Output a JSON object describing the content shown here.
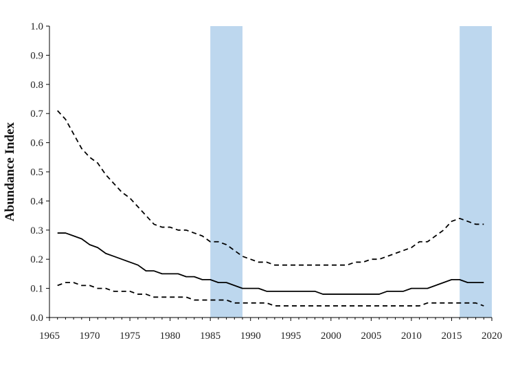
{
  "chart_data": {
    "type": "line",
    "title": "",
    "xlabel": "",
    "ylabel": "Abundance Index",
    "xlim": [
      1965,
      2020
    ],
    "ylim": [
      0.0,
      1.0
    ],
    "x_ticks": [
      "1965",
      "1970",
      "1975",
      "1980",
      "1985",
      "1990",
      "1995",
      "2000",
      "2005",
      "2010",
      "2015",
      "2020"
    ],
    "y_ticks": [
      "0.0",
      "0.1",
      "0.2",
      "0.3",
      "0.4",
      "0.5",
      "0.6",
      "0.7",
      "0.8",
      "0.9",
      "1.0"
    ],
    "grid": false,
    "legend": "none",
    "shaded_periods": [
      {
        "start": 1985,
        "end": 1989,
        "color": "#bdd7ee"
      },
      {
        "start": 2016,
        "end": 2020,
        "color": "#bdd7ee"
      }
    ],
    "series": [
      {
        "style": "dashed",
        "color": "#000000",
        "x": [
          1966,
          1967,
          1968,
          1969,
          1970,
          1971,
          1972,
          1973,
          1974,
          1975,
          1976,
          1977,
          1978,
          1979,
          1980,
          1981,
          1982,
          1983,
          1984,
          1985,
          1986,
          1987,
          1988,
          1989,
          1990,
          1991,
          1992,
          1993,
          1994,
          1995,
          1996,
          1997,
          1998,
          1999,
          2000,
          2001,
          2002,
          2003,
          2004,
          2005,
          2006,
          2007,
          2008,
          2009,
          2010,
          2011,
          2012,
          2013,
          2014,
          2015,
          2016,
          2017,
          2018,
          2019
        ],
        "values": [
          0.71,
          0.68,
          0.63,
          0.58,
          0.55,
          0.53,
          0.49,
          0.46,
          0.43,
          0.41,
          0.38,
          0.35,
          0.32,
          0.31,
          0.31,
          0.3,
          0.3,
          0.29,
          0.28,
          0.26,
          0.26,
          0.25,
          0.23,
          0.21,
          0.2,
          0.19,
          0.19,
          0.18,
          0.18,
          0.18,
          0.18,
          0.18,
          0.18,
          0.18,
          0.18,
          0.18,
          0.18,
          0.19,
          0.19,
          0.2,
          0.2,
          0.21,
          0.22,
          0.23,
          0.24,
          0.26,
          0.26,
          0.28,
          0.3,
          0.33,
          0.34,
          0.33,
          0.32,
          0.32
        ]
      },
      {
        "style": "solid",
        "color": "#000000",
        "x": [
          1966,
          1967,
          1968,
          1969,
          1970,
          1971,
          1972,
          1973,
          1974,
          1975,
          1976,
          1977,
          1978,
          1979,
          1980,
          1981,
          1982,
          1983,
          1984,
          1985,
          1986,
          1987,
          1988,
          1989,
          1990,
          1991,
          1992,
          1993,
          1994,
          1995,
          1996,
          1997,
          1998,
          1999,
          2000,
          2001,
          2002,
          2003,
          2004,
          2005,
          2006,
          2007,
          2008,
          2009,
          2010,
          2011,
          2012,
          2013,
          2014,
          2015,
          2016,
          2017,
          2018,
          2019
        ],
        "values": [
          0.29,
          0.29,
          0.28,
          0.27,
          0.25,
          0.24,
          0.22,
          0.21,
          0.2,
          0.19,
          0.18,
          0.16,
          0.16,
          0.15,
          0.15,
          0.15,
          0.14,
          0.14,
          0.13,
          0.13,
          0.12,
          0.12,
          0.11,
          0.1,
          0.1,
          0.1,
          0.09,
          0.09,
          0.09,
          0.09,
          0.09,
          0.09,
          0.09,
          0.08,
          0.08,
          0.08,
          0.08,
          0.08,
          0.08,
          0.08,
          0.08,
          0.09,
          0.09,
          0.09,
          0.1,
          0.1,
          0.1,
          0.11,
          0.12,
          0.13,
          0.13,
          0.12,
          0.12,
          0.12
        ]
      },
      {
        "style": "dashed",
        "color": "#000000",
        "x": [
          1966,
          1967,
          1968,
          1969,
          1970,
          1971,
          1972,
          1973,
          1974,
          1975,
          1976,
          1977,
          1978,
          1979,
          1980,
          1981,
          1982,
          1983,
          1984,
          1985,
          1986,
          1987,
          1988,
          1989,
          1990,
          1991,
          1992,
          1993,
          1994,
          1995,
          1996,
          1997,
          1998,
          1999,
          2000,
          2001,
          2002,
          2003,
          2004,
          2005,
          2006,
          2007,
          2008,
          2009,
          2010,
          2011,
          2012,
          2013,
          2014,
          2015,
          2016,
          2017,
          2018,
          2019
        ],
        "values": [
          0.11,
          0.12,
          0.12,
          0.11,
          0.11,
          0.1,
          0.1,
          0.09,
          0.09,
          0.09,
          0.08,
          0.08,
          0.07,
          0.07,
          0.07,
          0.07,
          0.07,
          0.06,
          0.06,
          0.06,
          0.06,
          0.06,
          0.05,
          0.05,
          0.05,
          0.05,
          0.05,
          0.04,
          0.04,
          0.04,
          0.04,
          0.04,
          0.04,
          0.04,
          0.04,
          0.04,
          0.04,
          0.04,
          0.04,
          0.04,
          0.04,
          0.04,
          0.04,
          0.04,
          0.04,
          0.04,
          0.05,
          0.05,
          0.05,
          0.05,
          0.05,
          0.05,
          0.05,
          0.04
        ]
      }
    ]
  }
}
